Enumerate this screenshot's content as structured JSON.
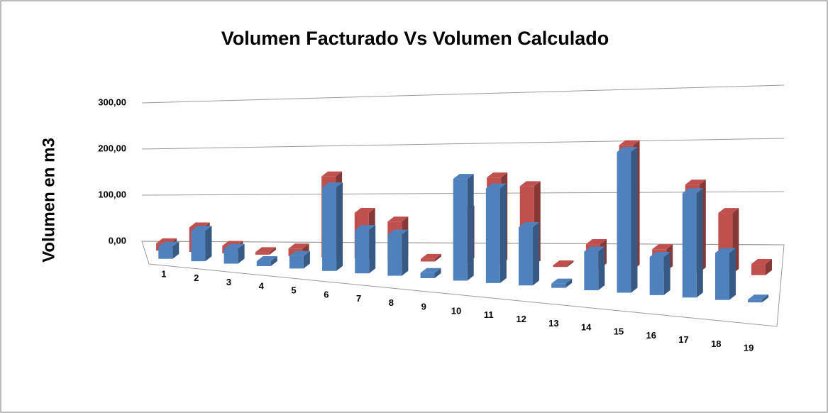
{
  "chart_data": {
    "type": "bar3d",
    "title": "Volumen Facturado Vs Volumen Calculado",
    "y_label": "Volumen  en m3",
    "categories": [
      "1",
      "2",
      "3",
      "4",
      "5",
      "6",
      "7",
      "8",
      "9",
      "10",
      "11",
      "12",
      "13",
      "14",
      "15",
      "16",
      "17",
      "18",
      "19"
    ],
    "series": [
      {
        "color": "#4f81bd",
        "values": [
          25,
          62,
          30,
          10,
          25,
          165,
          85,
          80,
          10,
          195,
          180,
          110,
          8,
          72,
          260,
          70,
          190,
          85,
          5
        ]
      },
      {
        "color": "#c0504d",
        "values": [
          15,
          50,
          15,
          5,
          15,
          160,
          90,
          75,
          5,
          100,
          165,
          150,
          3,
          45,
          230,
          40,
          160,
          110,
          20
        ]
      }
    ],
    "ylim": [
      0,
      300
    ],
    "yticks": [
      {
        "value": 0,
        "label": "0,00"
      },
      {
        "value": 100,
        "label": "100,00"
      },
      {
        "value": 200,
        "label": "200,00"
      },
      {
        "value": 300,
        "label": "300,00"
      }
    ],
    "grid": true
  }
}
